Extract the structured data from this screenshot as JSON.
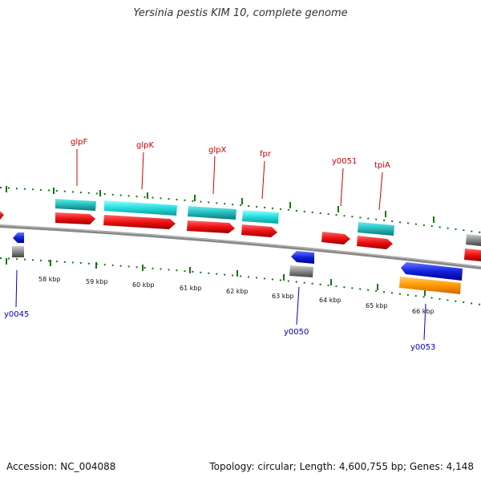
{
  "title": "Yersinia pestis KIM 10, complete genome",
  "footer": {
    "accession": "Accession: NC_004088",
    "summary": "Topology: circular; Length: 4,600,755 bp; Genes: 4,148"
  },
  "colors": {
    "backbone": "#888888",
    "forward_cds": "#ee1111",
    "forward_rna_like": "#22bbbb",
    "reverse_cds": "#1122dd",
    "pseudo_grey": "#888888",
    "orange": "#ff9900",
    "tick_green": "#117711",
    "label_red": "#cc0000",
    "label_blue": "#0000bb"
  },
  "scale_labels": [
    "58 kbp",
    "59 kbp",
    "60 kbp",
    "61 kbp",
    "62 kbp",
    "63 kbp",
    "64 kbp",
    "65 kbp",
    "66 kbp"
  ],
  "gene_labels": {
    "forward": [
      "glpF",
      "glpK",
      "glpX",
      "fpr",
      "y0051",
      "tpiA"
    ],
    "reverse": [
      "y0045",
      "y0050",
      "y0053"
    ]
  }
}
